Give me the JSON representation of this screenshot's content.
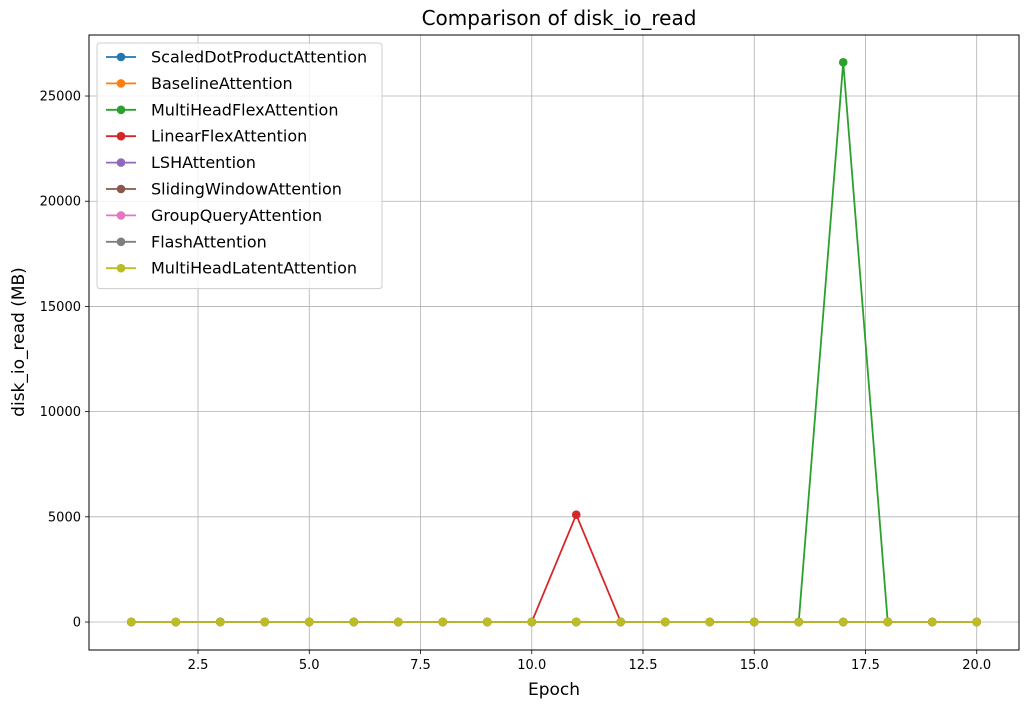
{
  "chart_data": {
    "type": "line",
    "title": "Comparison of disk_io_read",
    "xlabel": "Epoch",
    "ylabel": "disk_io_read (MB)",
    "xlim": [
      0.05,
      20.95
    ],
    "ylim": [
      -1330,
      27900
    ],
    "xticks": [
      "2.5",
      "5.0",
      "7.5",
      "10.0",
      "12.5",
      "15.0",
      "17.5",
      "20.0"
    ],
    "yticks": [
      "0",
      "5000",
      "10000",
      "15000",
      "20000",
      "25000"
    ],
    "grid": true,
    "legend_position": "top-left",
    "x": [
      1,
      2,
      3,
      4,
      5,
      6,
      7,
      8,
      9,
      10,
      11,
      12,
      13,
      14,
      15,
      16,
      17,
      18,
      19,
      20
    ],
    "series": [
      {
        "name": "ScaledDotProductAttention",
        "color": "#1f77b4",
        "values": [
          2,
          1,
          3,
          1,
          2,
          1,
          0,
          2,
          1,
          3,
          1,
          0,
          2,
          1,
          0,
          1,
          2,
          0,
          1,
          2
        ]
      },
      {
        "name": "BaselineAttention",
        "color": "#ff7f0e",
        "values": [
          1,
          2,
          0,
          1,
          3,
          2,
          1,
          0,
          2,
          1,
          0,
          3,
          1,
          2,
          1,
          0,
          1,
          2,
          0,
          1
        ]
      },
      {
        "name": "MultiHeadFlexAttention",
        "color": "#2ca02c",
        "values": [
          3,
          1,
          2,
          0,
          1,
          2,
          3,
          1,
          0,
          2,
          1,
          0,
          2,
          3,
          1,
          2,
          26600,
          5,
          1,
          2
        ]
      },
      {
        "name": "LinearFlexAttention",
        "color": "#d62728",
        "values": [
          2,
          0,
          1,
          3,
          0,
          1,
          2,
          0,
          1,
          4,
          5100,
          3,
          1,
          0,
          2,
          1,
          0,
          2,
          1,
          0
        ]
      },
      {
        "name": "LSHAttention",
        "color": "#9467bd",
        "values": [
          1,
          3,
          2,
          0,
          2,
          1,
          0,
          2,
          3,
          1,
          2,
          1,
          0,
          1,
          2,
          3,
          1,
          0,
          2,
          1
        ]
      },
      {
        "name": "SlidingWindowAttention",
        "color": "#8c564b",
        "values": [
          0,
          1,
          2,
          1,
          0,
          3,
          1,
          2,
          0,
          1,
          2,
          0,
          3,
          1,
          0,
          2,
          1,
          3,
          0,
          2
        ]
      },
      {
        "name": "GroupQueryAttention",
        "color": "#e377c2",
        "values": [
          2,
          1,
          0,
          2,
          1,
          0,
          2,
          1,
          3,
          0,
          1,
          2,
          0,
          1,
          3,
          1,
          2,
          0,
          1,
          0
        ]
      },
      {
        "name": "FlashAttention",
        "color": "#7f7f7f",
        "values": [
          1,
          0,
          1,
          2,
          3,
          1,
          0,
          1,
          2,
          0,
          3,
          1,
          2,
          0,
          1,
          2,
          0,
          1,
          3,
          1
        ]
      },
      {
        "name": "MultiHeadLatentAttention",
        "color": "#bcbd22",
        "values": [
          3,
          2,
          1,
          0,
          2,
          1,
          3,
          2,
          1,
          0,
          2,
          1,
          3,
          0,
          2,
          1,
          0,
          2,
          1,
          3
        ]
      }
    ]
  }
}
